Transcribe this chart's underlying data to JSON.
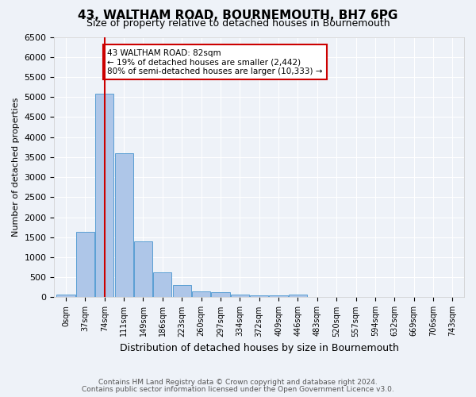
{
  "title": "43, WALTHAM ROAD, BOURNEMOUTH, BH7 6PG",
  "subtitle": "Size of property relative to detached houses in Bournemouth",
  "xlabel": "Distribution of detached houses by size in Bournemouth",
  "ylabel": "Number of detached properties",
  "footnote1": "Contains HM Land Registry data © Crown copyright and database right 2024.",
  "footnote2": "Contains public sector information licensed under the Open Government Licence v3.0.",
  "bin_labels": [
    "0sqm",
    "37sqm",
    "74sqm",
    "111sqm",
    "149sqm",
    "186sqm",
    "223sqm",
    "260sqm",
    "297sqm",
    "334sqm",
    "372sqm",
    "409sqm",
    "446sqm",
    "483sqm",
    "520sqm",
    "557sqm",
    "594sqm",
    "632sqm",
    "669sqm",
    "706sqm",
    "743sqm"
  ],
  "bar_values": [
    75,
    1625,
    5075,
    3600,
    1400,
    625,
    300,
    150,
    125,
    75,
    50,
    50,
    75,
    0,
    0,
    0,
    0,
    0,
    0,
    0,
    0
  ],
  "bar_color": "#aec6e8",
  "bar_edge_color": "#5a9fd4",
  "ylim": [
    0,
    6500
  ],
  "yticks": [
    0,
    500,
    1000,
    1500,
    2000,
    2500,
    3000,
    3500,
    4000,
    4500,
    5000,
    5500,
    6000,
    6500
  ],
  "property_bin_index": 2,
  "red_line_color": "#cc0000",
  "annotation_text": "43 WALTHAM ROAD: 82sqm\n← 19% of detached houses are smaller (2,442)\n80% of semi-detached houses are larger (10,333) →",
  "annotation_box_color": "#ffffff",
  "annotation_box_edge": "#cc0000",
  "bg_color": "#eef2f8",
  "plot_bg_color": "#eef2f8",
  "grid_color": "#ffffff"
}
